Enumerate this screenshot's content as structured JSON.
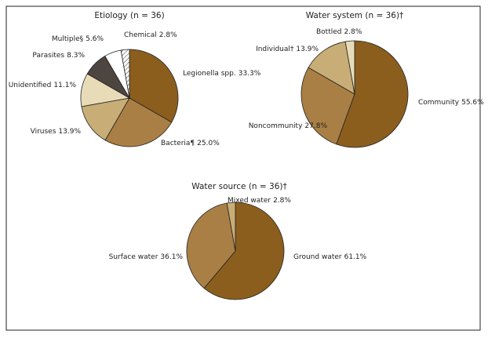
{
  "chart_data": [
    {
      "type": "pie",
      "title": "Etiology (n = 36)",
      "categories": [
        "Legionella spp.",
        "Bacteria¶",
        "Viruses",
        "Unidentified",
        "Parasites",
        "Multiple§",
        "Chemical"
      ],
      "values": [
        33.3,
        25.0,
        13.9,
        11.1,
        8.3,
        5.6,
        2.8
      ],
      "value_labels": [
        "33.3%",
        "25.0%",
        "13.9%",
        "11.1%",
        "8.3%",
        "5.6%",
        "2.8%"
      ],
      "colors": [
        "#8b5e1e",
        "#a97f45",
        "#c8ad76",
        "#e8dbb8",
        "#4d4540",
        "#ffffff",
        "url(#hatch)"
      ]
    },
    {
      "type": "pie",
      "title": "Water system (n = 36)†",
      "categories": [
        "Community",
        "Noncommunity",
        "Individual†",
        "Bottled"
      ],
      "values": [
        55.6,
        27.8,
        13.9,
        2.8
      ],
      "value_labels": [
        "55.6%",
        "27.8%",
        "13.9%",
        "2.8%"
      ],
      "colors": [
        "#8b5e1e",
        "#a97f45",
        "#c8ad76",
        "#e8dbb8"
      ]
    },
    {
      "type": "pie",
      "title": "Water source (n = 36)†",
      "categories": [
        "Ground water",
        "Surface water",
        "Mixed water"
      ],
      "values": [
        61.1,
        36.1,
        2.8
      ],
      "value_labels": [
        "61.1%",
        "36.1%",
        "2.8%"
      ],
      "colors": [
        "#8b5e1e",
        "#a97f45",
        "#c8ad76"
      ]
    }
  ]
}
